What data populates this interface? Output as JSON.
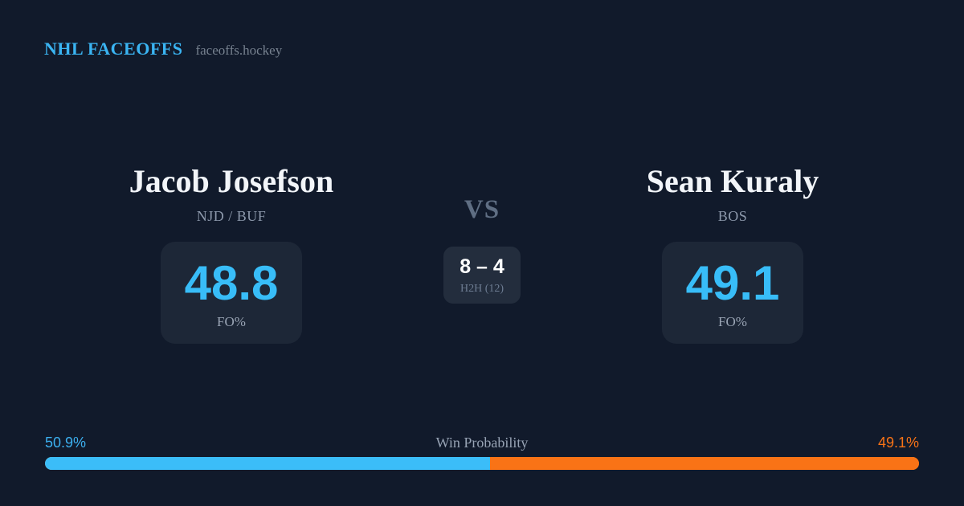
{
  "colors": {
    "background": "#111a2b",
    "card_background": "#1d2737",
    "h2h_background": "#232d3d",
    "accent_blue": "#38bdf8",
    "accent_orange": "#f97316",
    "brand_blue": "#3ab4f2",
    "muted_gray": "#8c98ab"
  },
  "header": {
    "brand": "NHL FACEOFFS",
    "site": "faceoffs.hockey"
  },
  "matchup": {
    "vs_label": "VS",
    "h2h": {
      "score": "8 – 4",
      "label": "H2H (12)"
    },
    "players": [
      {
        "name": "Jacob Josefson",
        "team": "NJD / BUF",
        "fo_value": "48.8",
        "fo_label": "FO%"
      },
      {
        "name": "Sean Kuraly",
        "team": "BOS",
        "fo_value": "49.1",
        "fo_label": "FO%"
      }
    ]
  },
  "win_probability": {
    "title": "Win Probability",
    "left_pct_label": "50.9%",
    "right_pct_label": "49.1%",
    "left_value": 50.9,
    "right_value": 49.1,
    "left_color": "#3bbdf8",
    "right_color": "#f97316"
  }
}
